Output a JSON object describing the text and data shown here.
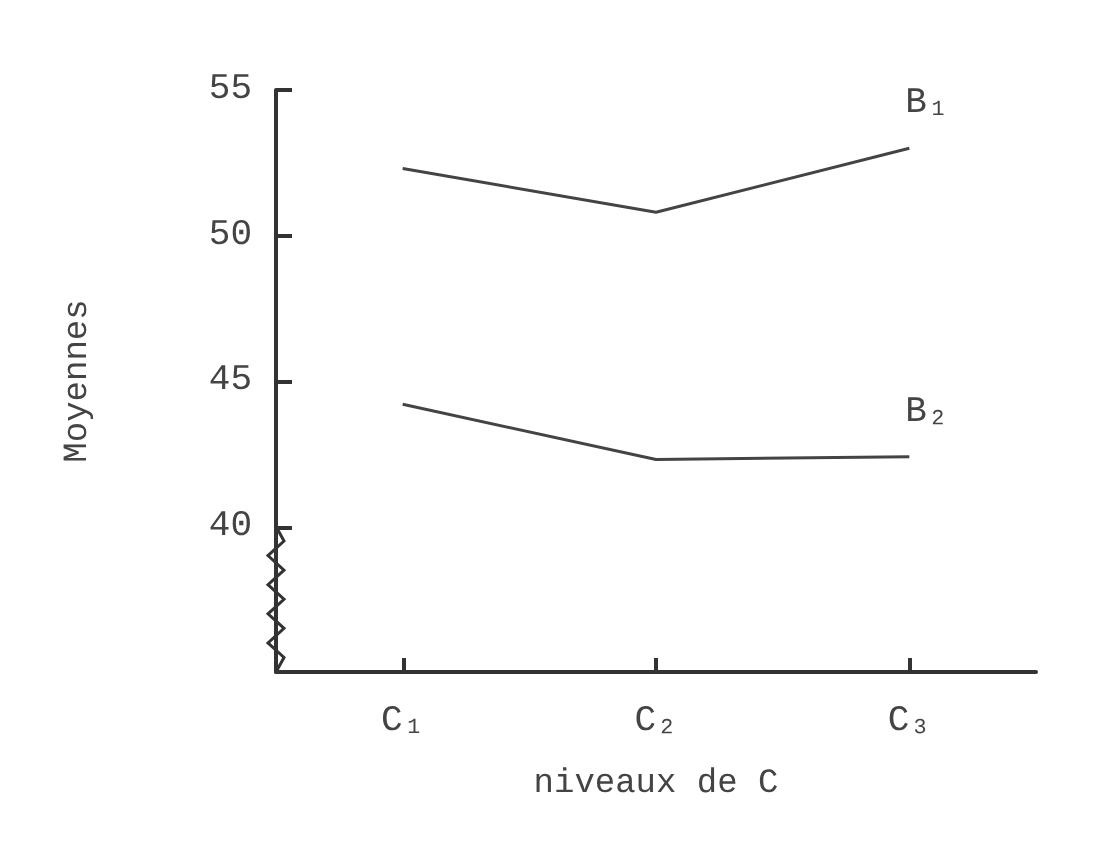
{
  "chart_data": {
    "type": "line",
    "xlabel": "niveaux de C",
    "ylabel": "Moyennes",
    "categories": [
      "C₁",
      "C₂",
      "C₃"
    ],
    "series": [
      {
        "name": "B₁",
        "color": "#444444",
        "values": [
          52.3,
          50.8,
          53.0
        ]
      },
      {
        "name": "B₂",
        "color": "#444444",
        "values": [
          44.2,
          42.3,
          42.4
        ]
      }
    ],
    "ylim": [
      35,
      55
    ],
    "yticks": [
      40,
      45,
      50,
      55
    ],
    "grid": false,
    "legend": false,
    "marker": "none",
    "line_style": "solid"
  }
}
